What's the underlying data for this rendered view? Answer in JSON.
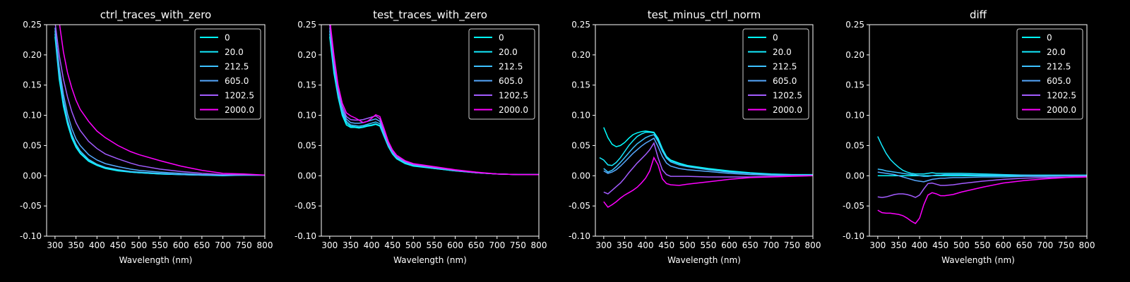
{
  "figure": {
    "background": "#000000"
  },
  "legend_colors": [
    "#00ffff",
    "#14ebff",
    "#3dc2ff",
    "#56a9ff",
    "#a35cff",
    "#ff00ff"
  ],
  "chart_data": [
    {
      "type": "line",
      "title": "ctrl_traces_with_zero",
      "xlabel": "Wavelength (nm)",
      "ylabel": "",
      "xlim": [
        280,
        800
      ],
      "ylim": [
        -0.1,
        0.25
      ],
      "xticks": [
        300,
        350,
        400,
        450,
        500,
        550,
        600,
        650,
        700,
        750,
        800
      ],
      "yticks": [
        -0.1,
        -0.05,
        0.0,
        0.05,
        0.1,
        0.15,
        0.2,
        0.25
      ],
      "legend_position": "upper right",
      "grid": false,
      "x": [
        300,
        310,
        320,
        330,
        340,
        350,
        360,
        380,
        400,
        420,
        450,
        480,
        500,
        550,
        600,
        650,
        700,
        750,
        800
      ],
      "series": [
        {
          "name": "0",
          "color": "#00ffff",
          "values": [
            0.23,
            0.16,
            0.115,
            0.085,
            0.062,
            0.047,
            0.037,
            0.024,
            0.017,
            0.012,
            0.008,
            0.006,
            0.005,
            0.003,
            0.002,
            0.001,
            0.0,
            0.001,
            0.001
          ]
        },
        {
          "name": "20.0",
          "color": "#14ebff",
          "values": [
            0.235,
            0.165,
            0.12,
            0.088,
            0.065,
            0.049,
            0.038,
            0.025,
            0.018,
            0.013,
            0.009,
            0.006,
            0.005,
            0.003,
            0.002,
            0.001,
            0.001,
            0.001,
            0.001
          ]
        },
        {
          "name": "212.5",
          "color": "#3dc2ff",
          "values": [
            0.24,
            0.17,
            0.125,
            0.092,
            0.068,
            0.052,
            0.041,
            0.027,
            0.019,
            0.014,
            0.01,
            0.007,
            0.006,
            0.004,
            0.002,
            0.001,
            0.001,
            0.001,
            0.001
          ]
        },
        {
          "name": "605.0",
          "color": "#56a9ff",
          "values": [
            0.245,
            0.18,
            0.135,
            0.102,
            0.078,
            0.061,
            0.05,
            0.035,
            0.026,
            0.02,
            0.015,
            0.011,
            0.009,
            0.006,
            0.004,
            0.002,
            0.001,
            0.001,
            0.001
          ]
        },
        {
          "name": "1202.5",
          "color": "#a35cff",
          "values": [
            0.255,
            0.2,
            0.16,
            0.13,
            0.106,
            0.088,
            0.075,
            0.057,
            0.045,
            0.036,
            0.028,
            0.021,
            0.017,
            0.011,
            0.007,
            0.004,
            0.002,
            0.002,
            0.001
          ]
        },
        {
          "name": "2000.0",
          "color": "#ff00ff",
          "values": [
            0.26,
            0.255,
            0.205,
            0.17,
            0.145,
            0.125,
            0.11,
            0.09,
            0.074,
            0.063,
            0.05,
            0.04,
            0.035,
            0.025,
            0.016,
            0.009,
            0.004,
            0.003,
            0.001
          ]
        }
      ]
    },
    {
      "type": "line",
      "title": "test_traces_with_zero",
      "xlabel": "Wavelength (nm)",
      "ylabel": "",
      "xlim": [
        280,
        800
      ],
      "ylim": [
        -0.1,
        0.25
      ],
      "xticks": [
        300,
        350,
        400,
        450,
        500,
        550,
        600,
        650,
        700,
        750,
        800
      ],
      "yticks": [
        -0.1,
        -0.05,
        0.0,
        0.05,
        0.1,
        0.15,
        0.2,
        0.25
      ],
      "legend_position": "upper right",
      "grid": false,
      "x": [
        300,
        310,
        320,
        330,
        340,
        350,
        360,
        370,
        380,
        390,
        400,
        410,
        420,
        430,
        440,
        450,
        460,
        480,
        500,
        550,
        600,
        650,
        700,
        750,
        800
      ],
      "series": [
        {
          "name": "0",
          "color": "#00ffff",
          "values": [
            0.23,
            0.17,
            0.13,
            0.1,
            0.084,
            0.08,
            0.08,
            0.079,
            0.08,
            0.082,
            0.083,
            0.085,
            0.082,
            0.065,
            0.048,
            0.036,
            0.028,
            0.02,
            0.016,
            0.012,
            0.008,
            0.005,
            0.003,
            0.002,
            0.002
          ]
        },
        {
          "name": "20.0",
          "color": "#14ebff",
          "values": [
            0.235,
            0.175,
            0.133,
            0.104,
            0.087,
            0.082,
            0.081,
            0.08,
            0.081,
            0.083,
            0.084,
            0.086,
            0.083,
            0.066,
            0.049,
            0.037,
            0.029,
            0.021,
            0.017,
            0.012,
            0.008,
            0.005,
            0.003,
            0.002,
            0.002
          ]
        },
        {
          "name": "212.5",
          "color": "#3dc2ff",
          "values": [
            0.24,
            0.18,
            0.136,
            0.106,
            0.09,
            0.084,
            0.083,
            0.082,
            0.083,
            0.085,
            0.087,
            0.089,
            0.086,
            0.068,
            0.05,
            0.038,
            0.03,
            0.022,
            0.018,
            0.013,
            0.009,
            0.005,
            0.003,
            0.002,
            0.002
          ]
        },
        {
          "name": "605.0",
          "color": "#56a9ff",
          "values": [
            0.245,
            0.185,
            0.14,
            0.11,
            0.094,
            0.088,
            0.087,
            0.087,
            0.088,
            0.09,
            0.092,
            0.094,
            0.09,
            0.071,
            0.052,
            0.039,
            0.031,
            0.023,
            0.018,
            0.013,
            0.009,
            0.005,
            0.003,
            0.002,
            0.002
          ]
        },
        {
          "name": "1202.5",
          "color": "#a35cff",
          "values": [
            0.25,
            0.19,
            0.145,
            0.115,
            0.098,
            0.093,
            0.092,
            0.092,
            0.093,
            0.095,
            0.097,
            0.099,
            0.094,
            0.074,
            0.054,
            0.041,
            0.032,
            0.024,
            0.019,
            0.014,
            0.009,
            0.005,
            0.003,
            0.002,
            0.002
          ]
        },
        {
          "name": "2000.0",
          "color": "#ff00ff",
          "values": [
            0.26,
            0.2,
            0.15,
            0.12,
            0.104,
            0.099,
            0.096,
            0.092,
            0.088,
            0.09,
            0.095,
            0.101,
            0.098,
            0.078,
            0.057,
            0.043,
            0.034,
            0.025,
            0.02,
            0.015,
            0.01,
            0.006,
            0.003,
            0.002,
            0.002
          ]
        }
      ]
    },
    {
      "type": "line",
      "title": "test_minus_ctrl_norm",
      "xlabel": "Wavelength (nm)",
      "ylabel": "",
      "xlim": [
        280,
        800
      ],
      "ylim": [
        -0.1,
        0.25
      ],
      "xticks": [
        300,
        350,
        400,
        450,
        500,
        550,
        600,
        650,
        700,
        750,
        800
      ],
      "yticks": [
        -0.1,
        -0.05,
        0.0,
        0.05,
        0.1,
        0.15,
        0.2,
        0.25
      ],
      "legend_position": "upper right",
      "grid": false,
      "x": [
        290,
        300,
        310,
        320,
        330,
        340,
        350,
        360,
        370,
        380,
        390,
        400,
        410,
        420,
        430,
        440,
        450,
        460,
        480,
        500,
        550,
        600,
        650,
        700,
        750,
        800
      ],
      "series": [
        {
          "name": "0",
          "color": "#00ffff",
          "values": [
            null,
            0.08,
            0.063,
            0.052,
            0.048,
            0.05,
            0.055,
            0.062,
            0.068,
            0.071,
            0.073,
            0.074,
            0.073,
            0.072,
            0.062,
            0.045,
            0.032,
            0.026,
            0.021,
            0.017,
            0.012,
            0.008,
            0.005,
            0.003,
            0.002,
            0.002
          ]
        },
        {
          "name": "20.0",
          "color": "#14ebff",
          "values": [
            0.03,
            0.026,
            0.018,
            0.017,
            0.022,
            0.03,
            0.04,
            0.05,
            0.058,
            0.065,
            0.069,
            0.072,
            0.072,
            0.071,
            0.06,
            0.044,
            0.031,
            0.025,
            0.02,
            0.016,
            0.011,
            0.007,
            0.004,
            0.002,
            0.001,
            0.001
          ]
        },
        {
          "name": "212.5",
          "color": "#3dc2ff",
          "values": [
            null,
            0.012,
            0.006,
            0.009,
            0.015,
            0.022,
            0.03,
            0.038,
            0.046,
            0.053,
            0.058,
            0.063,
            0.066,
            0.068,
            0.057,
            0.041,
            0.029,
            0.023,
            0.018,
            0.015,
            0.01,
            0.006,
            0.004,
            0.002,
            0.001,
            0.001
          ]
        },
        {
          "name": "605.0",
          "color": "#56a9ff",
          "values": [
            null,
            0.008,
            0.004,
            0.006,
            0.01,
            0.016,
            0.023,
            0.03,
            0.037,
            0.043,
            0.049,
            0.054,
            0.058,
            0.062,
            0.048,
            0.032,
            0.021,
            0.016,
            0.012,
            0.01,
            0.007,
            0.004,
            0.002,
            0.001,
            0.001,
            0.001
          ]
        },
        {
          "name": "1202.5",
          "color": "#a35cff",
          "values": [
            null,
            -0.027,
            -0.03,
            -0.024,
            -0.018,
            -0.012,
            -0.004,
            0.005,
            0.013,
            0.021,
            0.028,
            0.035,
            0.043,
            0.054,
            0.03,
            0.01,
            0.002,
            -0.001,
            -0.001,
            -0.001,
            -0.002,
            -0.002,
            -0.002,
            -0.001,
            0.0,
            0.0
          ]
        },
        {
          "name": "2000.0",
          "color": "#ff00ff",
          "values": [
            null,
            -0.043,
            -0.052,
            -0.048,
            -0.043,
            -0.037,
            -0.032,
            -0.028,
            -0.024,
            -0.019,
            -0.012,
            -0.004,
            0.008,
            0.03,
            0.018,
            -0.005,
            -0.013,
            -0.015,
            -0.016,
            -0.014,
            -0.01,
            -0.006,
            -0.003,
            -0.002,
            -0.001,
            0.0
          ]
        }
      ]
    },
    {
      "type": "line",
      "title": "diff",
      "xlabel": "Wavelength (nm)",
      "ylabel": "",
      "xlim": [
        280,
        800
      ],
      "ylim": [
        -0.1,
        0.25
      ],
      "xticks": [
        300,
        350,
        400,
        450,
        500,
        550,
        600,
        650,
        700,
        750,
        800
      ],
      "yticks": [
        -0.1,
        -0.05,
        0.0,
        0.05,
        0.1,
        0.15,
        0.2,
        0.25
      ],
      "legend_position": "upper right",
      "grid": false,
      "x": [
        300,
        310,
        320,
        330,
        340,
        350,
        360,
        370,
        380,
        390,
        400,
        410,
        420,
        430,
        440,
        450,
        460,
        480,
        500,
        550,
        600,
        650,
        700,
        750,
        800
      ],
      "series": [
        {
          "name": "0",
          "color": "#00ffff",
          "values": [
            0.0,
            0.0,
            0.0,
            0.0,
            0.0,
            0.0,
            0.0,
            0.0,
            0.0,
            0.0,
            0.0,
            0.0,
            0.0,
            0.0,
            0.0,
            0.0,
            0.0,
            0.0,
            0.0,
            0.0,
            0.0,
            0.0,
            0.0,
            0.0,
            0.0
          ]
        },
        {
          "name": "20.0",
          "color": "#14ebff",
          "values": [
            0.065,
            0.05,
            0.037,
            0.027,
            0.02,
            0.014,
            0.009,
            0.006,
            0.004,
            0.003,
            0.003,
            0.003,
            0.004,
            0.005,
            0.004,
            0.004,
            0.004,
            0.004,
            0.004,
            0.003,
            0.002,
            0.001,
            0.001,
            0.001,
            0.001
          ]
        },
        {
          "name": "212.5",
          "color": "#3dc2ff",
          "values": [
            0.011,
            0.01,
            0.008,
            0.007,
            0.006,
            0.005,
            0.004,
            0.003,
            0.002,
            0.001,
            0.0,
            -0.001,
            -0.001,
            0.0,
            0.001,
            0.001,
            0.002,
            0.002,
            0.002,
            0.001,
            0.001,
            0.001,
            0.0,
            0.0,
            0.0
          ]
        },
        {
          "name": "605.0",
          "color": "#56a9ff",
          "values": [
            0.006,
            0.005,
            0.004,
            0.003,
            0.002,
            0.0,
            -0.002,
            -0.004,
            -0.006,
            -0.008,
            -0.009,
            -0.01,
            -0.008,
            -0.006,
            -0.005,
            -0.004,
            -0.004,
            -0.003,
            -0.003,
            -0.002,
            -0.002,
            -0.001,
            -0.001,
            0.0,
            0.0
          ]
        },
        {
          "name": "1202.5",
          "color": "#a35cff",
          "values": [
            -0.035,
            -0.036,
            -0.035,
            -0.033,
            -0.031,
            -0.03,
            -0.03,
            -0.031,
            -0.033,
            -0.036,
            -0.032,
            -0.022,
            -0.013,
            -0.012,
            -0.014,
            -0.016,
            -0.016,
            -0.015,
            -0.013,
            -0.009,
            -0.006,
            -0.004,
            -0.003,
            -0.002,
            -0.001
          ]
        },
        {
          "name": "2000.0",
          "color": "#ff00ff",
          "values": [
            -0.057,
            -0.061,
            -0.062,
            -0.062,
            -0.063,
            -0.064,
            -0.066,
            -0.07,
            -0.075,
            -0.079,
            -0.07,
            -0.048,
            -0.032,
            -0.028,
            -0.03,
            -0.033,
            -0.033,
            -0.031,
            -0.027,
            -0.019,
            -0.012,
            -0.008,
            -0.005,
            -0.003,
            -0.002
          ]
        }
      ]
    }
  ]
}
